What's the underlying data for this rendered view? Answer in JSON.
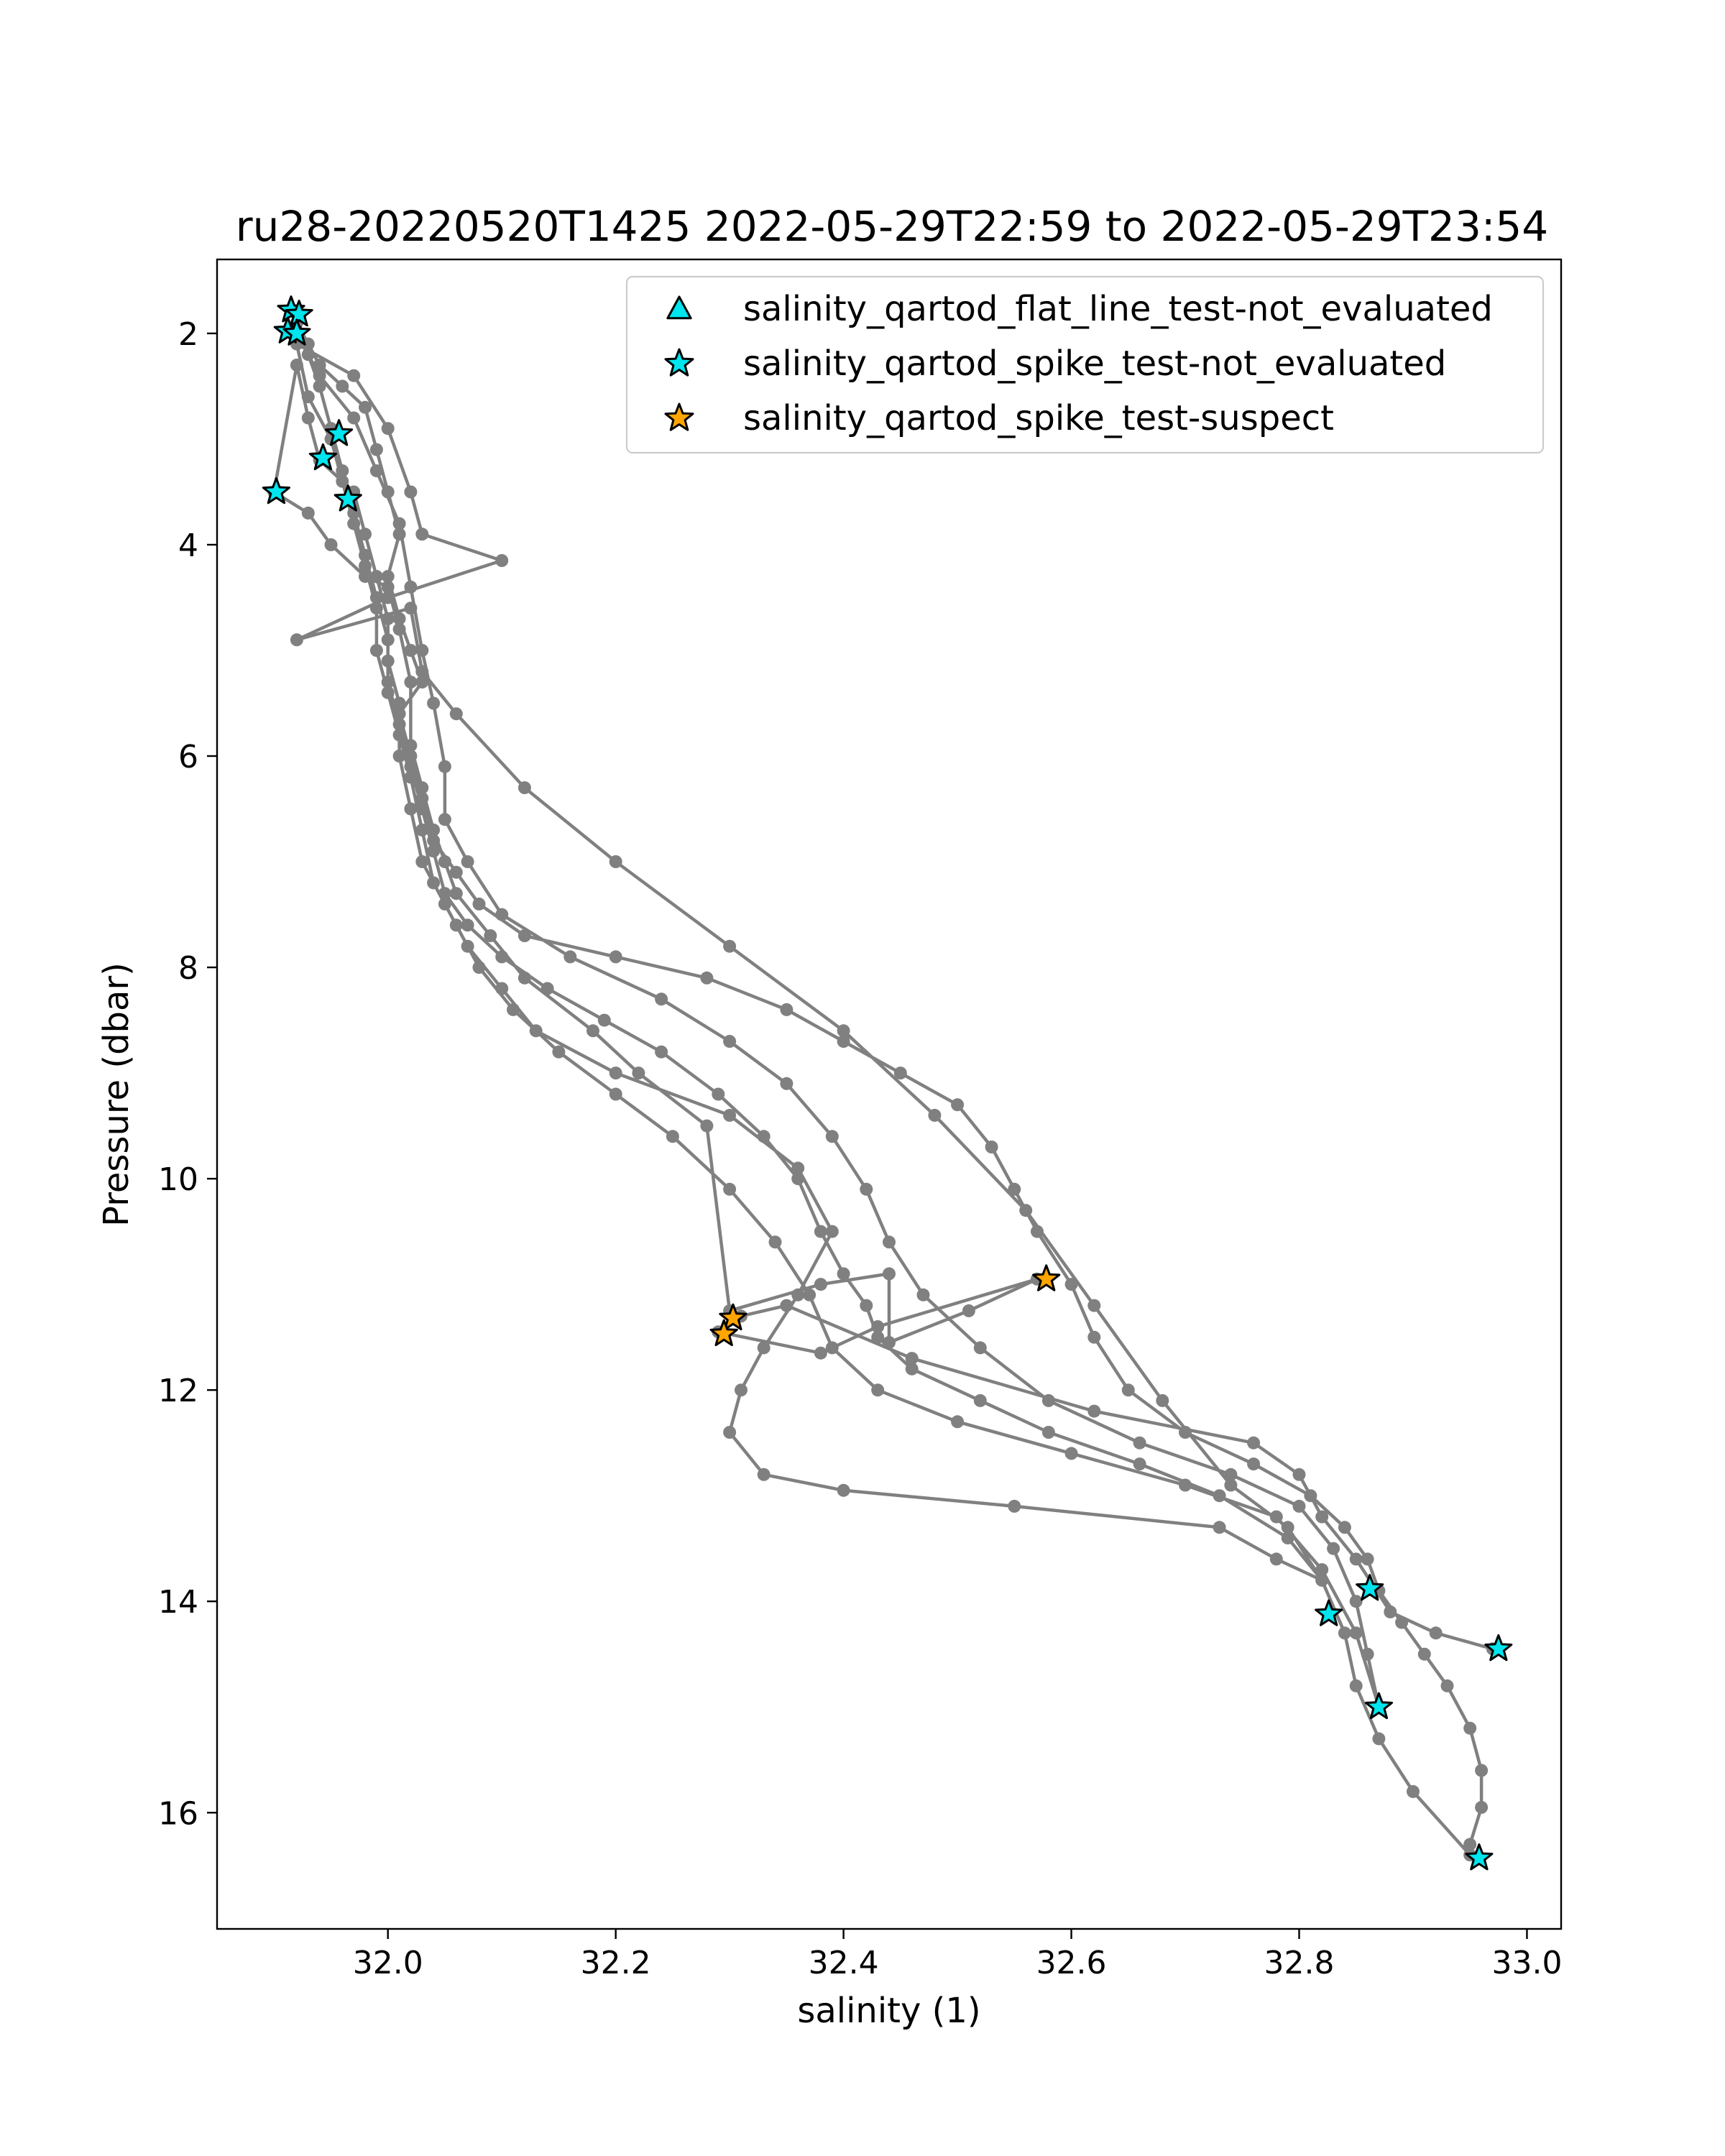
{
  "chart_data": {
    "type": "scatter",
    "title": "ru28-20220520T1425 2022-05-29T22:59 to 2022-05-29T23:54",
    "xlabel": "salinity (1)",
    "ylabel": "Pressure (dbar)",
    "xlim": [
      31.85,
      33.03
    ],
    "ylim": [
      17.1,
      1.3
    ],
    "y_inverted": true,
    "grid": false,
    "legend_placement": "upper-right",
    "xticks": [
      32.0,
      32.2,
      32.4,
      32.6,
      32.8,
      33.0
    ],
    "xtick_labels": [
      "32.0",
      "32.2",
      "32.4",
      "32.6",
      "32.8",
      "33.0"
    ],
    "yticks": [
      2,
      4,
      6,
      8,
      10,
      12,
      14,
      16
    ],
    "ytick_labels": [
      "2",
      "4",
      "6",
      "8",
      "10",
      "12",
      "14",
      "16"
    ],
    "colors": {
      "profile_line": "#808080",
      "not_evaluated": "#00e5ee",
      "suspect": "#ffa500",
      "marker_edge": "#000000"
    },
    "profile": [
      [
        31.92,
        1.9
      ],
      [
        31.93,
        2.1
      ],
      [
        31.94,
        2.3
      ],
      [
        31.96,
        2.5
      ],
      [
        31.98,
        2.7
      ],
      [
        31.99,
        3.1
      ],
      [
        32.0,
        3.5
      ],
      [
        32.01,
        3.9
      ],
      [
        32.0,
        4.3
      ],
      [
        32.01,
        4.7
      ],
      [
        32.02,
        5.0
      ],
      [
        32.03,
        5.3
      ],
      [
        32.01,
        5.6
      ],
      [
        32.02,
        6.0
      ],
      [
        32.03,
        6.4
      ],
      [
        32.04,
        6.8
      ],
      [
        32.06,
        7.1
      ],
      [
        32.08,
        7.4
      ],
      [
        32.12,
        7.7
      ],
      [
        32.2,
        7.9
      ],
      [
        32.28,
        8.1
      ],
      [
        32.35,
        8.4
      ],
      [
        32.4,
        8.7
      ],
      [
        32.45,
        9.0
      ],
      [
        32.5,
        9.3
      ],
      [
        32.53,
        9.7
      ],
      [
        32.55,
        10.1
      ],
      [
        32.57,
        10.5
      ],
      [
        32.6,
        11.0
      ],
      [
        32.62,
        11.5
      ],
      [
        32.65,
        12.0
      ],
      [
        32.7,
        12.4
      ],
      [
        32.76,
        12.7
      ],
      [
        32.81,
        13.0
      ],
      [
        32.84,
        13.3
      ],
      [
        32.86,
        13.6
      ],
      [
        32.87,
        13.9
      ],
      [
        32.89,
        14.2
      ],
      [
        32.91,
        14.5
      ],
      [
        32.93,
        14.8
      ],
      [
        32.95,
        15.2
      ],
      [
        32.96,
        15.6
      ],
      [
        32.96,
        15.95
      ],
      [
        32.95,
        16.3
      ],
      [
        32.95,
        16.4
      ],
      [
        32.9,
        15.8
      ],
      [
        32.87,
        15.3
      ],
      [
        32.85,
        14.8
      ],
      [
        32.84,
        14.3
      ],
      [
        32.82,
        13.8
      ],
      [
        32.79,
        13.4
      ],
      [
        32.73,
        13.0
      ],
      [
        32.66,
        12.7
      ],
      [
        32.58,
        12.4
      ],
      [
        32.52,
        12.1
      ],
      [
        32.46,
        11.8
      ],
      [
        32.43,
        11.5
      ],
      [
        32.42,
        11.2
      ],
      [
        32.4,
        10.9
      ],
      [
        32.38,
        10.5
      ],
      [
        32.36,
        10.0
      ],
      [
        32.33,
        9.6
      ],
      [
        32.29,
        9.2
      ],
      [
        32.24,
        8.8
      ],
      [
        32.19,
        8.5
      ],
      [
        32.14,
        8.2
      ],
      [
        32.1,
        7.9
      ],
      [
        32.07,
        7.6
      ],
      [
        32.05,
        7.3
      ],
      [
        32.04,
        6.9
      ],
      [
        32.03,
        6.5
      ],
      [
        32.02,
        6.1
      ],
      [
        32.01,
        5.7
      ],
      [
        32.0,
        5.3
      ],
      [
        32.0,
        4.9
      ],
      [
        31.99,
        4.5
      ],
      [
        31.98,
        4.1
      ],
      [
        31.97,
        3.7
      ],
      [
        31.96,
        3.3
      ],
      [
        31.95,
        2.9
      ],
      [
        31.94,
        2.5
      ],
      [
        31.93,
        2.2
      ],
      [
        31.92,
        2.0
      ],
      [
        31.94,
        2.4
      ],
      [
        31.97,
        2.8
      ],
      [
        31.99,
        3.3
      ],
      [
        32.01,
        3.8
      ],
      [
        32.02,
        4.4
      ],
      [
        32.03,
        5.0
      ],
      [
        32.04,
        5.5
      ],
      [
        32.05,
        6.1
      ],
      [
        32.05,
        6.6
      ],
      [
        32.07,
        7.0
      ],
      [
        32.1,
        7.5
      ],
      [
        32.16,
        7.9
      ],
      [
        32.24,
        8.3
      ],
      [
        32.3,
        8.7
      ],
      [
        32.35,
        9.1
      ],
      [
        32.39,
        9.6
      ],
      [
        32.42,
        10.1
      ],
      [
        32.44,
        10.6
      ],
      [
        32.47,
        11.1
      ],
      [
        32.52,
        11.6
      ],
      [
        32.58,
        12.1
      ],
      [
        32.66,
        12.5
      ],
      [
        32.74,
        12.8
      ],
      [
        32.8,
        13.1
      ],
      [
        32.83,
        13.5
      ],
      [
        32.85,
        14.0
      ],
      [
        32.86,
        14.5
      ],
      [
        32.87,
        15.0
      ],
      [
        32.85,
        14.3
      ],
      [
        32.82,
        13.7
      ],
      [
        32.78,
        13.2
      ],
      [
        32.7,
        12.9
      ],
      [
        32.6,
        12.6
      ],
      [
        32.5,
        12.3
      ],
      [
        32.43,
        12.0
      ],
      [
        32.39,
        11.6
      ],
      [
        32.37,
        11.1
      ],
      [
        32.34,
        10.6
      ],
      [
        32.3,
        10.1
      ],
      [
        32.25,
        9.6
      ],
      [
        32.2,
        9.2
      ],
      [
        32.15,
        8.8
      ],
      [
        32.11,
        8.4
      ],
      [
        32.08,
        8.0
      ],
      [
        32.06,
        7.6
      ],
      [
        32.04,
        7.2
      ],
      [
        32.03,
        6.7
      ],
      [
        32.02,
        6.2
      ],
      [
        32.01,
        5.8
      ],
      [
        32.0,
        5.4
      ],
      [
        31.99,
        5.0
      ],
      [
        31.99,
        4.6
      ],
      [
        31.98,
        4.2
      ],
      [
        31.97,
        3.8
      ],
      [
        31.96,
        3.4
      ],
      [
        31.95,
        3.0
      ],
      [
        31.93,
        2.6
      ],
      [
        31.92,
        2.1
      ],
      [
        31.97,
        2.4
      ],
      [
        32.0,
        2.9
      ],
      [
        32.02,
        3.5
      ],
      [
        32.03,
        3.9
      ],
      [
        32.1,
        4.15
      ],
      [
        32.0,
        4.5
      ],
      [
        31.92,
        4.9
      ],
      [
        32.02,
        4.6
      ],
      [
        32.03,
        5.2
      ],
      [
        32.06,
        5.6
      ],
      [
        32.12,
        6.3
      ],
      [
        32.2,
        7.0
      ],
      [
        32.3,
        7.8
      ],
      [
        32.4,
        8.6
      ],
      [
        32.48,
        9.4
      ],
      [
        32.56,
        10.3
      ],
      [
        32.62,
        11.2
      ],
      [
        32.68,
        12.1
      ],
      [
        32.74,
        12.9
      ],
      [
        32.79,
        13.3
      ],
      [
        32.82,
        13.8
      ],
      [
        32.78,
        13.6
      ],
      [
        32.73,
        13.3
      ],
      [
        32.55,
        13.1
      ],
      [
        32.4,
        12.95
      ],
      [
        32.33,
        12.8
      ],
      [
        32.3,
        12.4
      ],
      [
        32.31,
        12.0
      ],
      [
        32.33,
        11.6
      ],
      [
        32.36,
        11.1
      ],
      [
        32.39,
        10.5
      ],
      [
        32.36,
        9.9
      ],
      [
        32.3,
        9.4
      ],
      [
        32.2,
        9.0
      ],
      [
        32.13,
        8.6
      ],
      [
        32.1,
        8.2
      ],
      [
        32.07,
        7.8
      ],
      [
        32.05,
        7.4
      ],
      [
        32.03,
        7.0
      ],
      [
        32.02,
        6.5
      ],
      [
        32.01,
        6.0
      ],
      [
        32.01,
        5.5
      ],
      [
        32.0,
        5.1
      ],
      [
        32.0,
        4.7
      ],
      [
        31.99,
        4.3
      ],
      [
        31.98,
        3.9
      ],
      [
        31.97,
        3.5
      ],
      [
        31.94,
        3.2
      ],
      [
        31.93,
        2.8
      ],
      [
        31.92,
        2.3
      ],
      [
        31.9,
        3.5
      ],
      [
        31.93,
        3.7
      ],
      [
        31.95,
        4.0
      ],
      [
        31.98,
        4.3
      ],
      [
        32.0,
        4.4
      ],
      [
        32.01,
        4.8
      ],
      [
        32.02,
        5.3
      ],
      [
        32.02,
        5.9
      ],
      [
        32.03,
        6.3
      ],
      [
        32.04,
        6.7
      ],
      [
        32.05,
        7.0
      ],
      [
        32.06,
        7.3
      ],
      [
        32.09,
        7.7
      ],
      [
        32.12,
        8.1
      ],
      [
        32.18,
        8.6
      ],
      [
        32.22,
        9.0
      ],
      [
        32.28,
        9.5
      ],
      [
        32.3,
        11.25
      ],
      [
        32.38,
        11.0
      ],
      [
        32.44,
        10.9
      ],
      [
        32.44,
        11.55
      ],
      [
        32.51,
        11.25
      ],
      [
        32.57,
        10.95
      ],
      [
        32.43,
        11.4
      ],
      [
        32.38,
        11.65
      ],
      [
        32.29,
        11.45
      ],
      [
        32.31,
        11.3
      ],
      [
        32.35,
        11.2
      ],
      [
        32.46,
        11.7
      ],
      [
        32.62,
        12.2
      ],
      [
        32.76,
        12.5
      ],
      [
        32.8,
        12.8
      ],
      [
        32.82,
        13.2
      ],
      [
        32.85,
        13.6
      ],
      [
        32.88,
        14.1
      ],
      [
        32.92,
        14.3
      ],
      [
        32.97,
        14.45
      ]
    ],
    "series": [
      {
        "name": "salinity_qartod_flat_line_test-not_evaluated",
        "marker": "triangle",
        "color": "#00e5ee",
        "points": []
      },
      {
        "name": "salinity_qartod_spike_test-not_evaluated",
        "marker": "star",
        "color": "#00e5ee",
        "points": [
          [
            31.915,
            1.78
          ],
          [
            31.922,
            1.82
          ],
          [
            31.912,
            1.98
          ],
          [
            31.92,
            2.0
          ],
          [
            31.957,
            2.95
          ],
          [
            31.943,
            3.18
          ],
          [
            31.902,
            3.5
          ],
          [
            31.965,
            3.57
          ],
          [
            32.862,
            13.88
          ],
          [
            32.826,
            14.12
          ],
          [
            32.975,
            14.45
          ],
          [
            32.87,
            15.0
          ],
          [
            32.958,
            16.43
          ]
        ]
      },
      {
        "name": "salinity_qartod_spike_test-suspect",
        "marker": "star",
        "color": "#ffa500",
        "points": [
          [
            32.578,
            10.95
          ],
          [
            32.303,
            11.32
          ],
          [
            32.295,
            11.47
          ]
        ]
      }
    ]
  }
}
